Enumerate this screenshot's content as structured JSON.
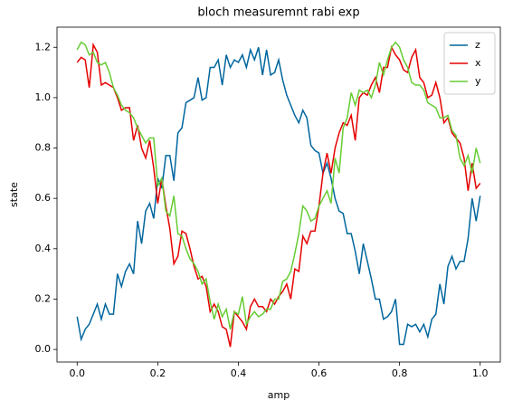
{
  "chart_data": {
    "type": "line",
    "title": "bloch measuremnt rabi exp",
    "xlabel": "amp",
    "ylabel": "state",
    "x": [
      0,
      0.01,
      0.02,
      0.03,
      0.04,
      0.05,
      0.06,
      0.07,
      0.08,
      0.09,
      0.1,
      0.11,
      0.12,
      0.13,
      0.14,
      0.15,
      0.16,
      0.17,
      0.18,
      0.19,
      0.2,
      0.21,
      0.22,
      0.23,
      0.24,
      0.25,
      0.26,
      0.27,
      0.28,
      0.29,
      0.3,
      0.31,
      0.32,
      0.33,
      0.34,
      0.35,
      0.36,
      0.37,
      0.38,
      0.39,
      0.4,
      0.41,
      0.42,
      0.43,
      0.44,
      0.45,
      0.46,
      0.47,
      0.48,
      0.49,
      0.5,
      0.51,
      0.52,
      0.53,
      0.54,
      0.55,
      0.56,
      0.57,
      0.58,
      0.59,
      0.6,
      0.61,
      0.62,
      0.63,
      0.64,
      0.65,
      0.66,
      0.67,
      0.68,
      0.69,
      0.7,
      0.71,
      0.72,
      0.73,
      0.74,
      0.75,
      0.76,
      0.77,
      0.78,
      0.79,
      0.8,
      0.81,
      0.82,
      0.83,
      0.84,
      0.85,
      0.86,
      0.87,
      0.88,
      0.89,
      0.9,
      0.91,
      0.92,
      0.93,
      0.94,
      0.95,
      0.96,
      0.97,
      0.98,
      0.99,
      1
    ],
    "series": [
      {
        "name": "z",
        "color": "#00669e",
        "values": [
          0.13,
          0.04,
          0.08,
          0.1,
          0.14,
          0.18,
          0.12,
          0.18,
          0.14,
          0.14,
          0.3,
          0.25,
          0.31,
          0.34,
          0.3,
          0.51,
          0.42,
          0.55,
          0.58,
          0.52,
          0.68,
          0.64,
          0.77,
          0.77,
          0.67,
          0.86,
          0.88,
          0.98,
          0.99,
          1.0,
          1.08,
          0.99,
          1.0,
          1.12,
          1.12,
          1.15,
          1.05,
          1.17,
          1.12,
          1.15,
          1.14,
          1.17,
          1.12,
          1.19,
          1.15,
          1.2,
          1.09,
          1.19,
          1.09,
          1.1,
          1.15,
          1.07,
          1.01,
          0.97,
          0.93,
          0.9,
          0.95,
          0.92,
          0.81,
          0.79,
          0.78,
          0.7,
          0.74,
          0.68,
          0.6,
          0.55,
          0.54,
          0.46,
          0.46,
          0.39,
          0.3,
          0.42,
          0.35,
          0.28,
          0.2,
          0.2,
          0.12,
          0.13,
          0.15,
          0.2,
          0.02,
          0.02,
          0.1,
          0.09,
          0.1,
          0.07,
          0.1,
          0.05,
          0.12,
          0.14,
          0.26,
          0.18,
          0.33,
          0.37,
          0.32,
          0.35,
          0.35,
          0.44,
          0.6,
          0.51,
          0.61
        ]
      },
      {
        "name": "x",
        "color": "#e60000",
        "values": [
          1.14,
          1.16,
          1.15,
          1.04,
          1.21,
          1.18,
          1.05,
          1.06,
          1.05,
          1.04,
          1.0,
          0.95,
          0.96,
          0.96,
          0.83,
          0.89,
          0.8,
          0.76,
          0.83,
          0.72,
          0.58,
          0.68,
          0.57,
          0.48,
          0.34,
          0.37,
          0.47,
          0.46,
          0.4,
          0.33,
          0.28,
          0.29,
          0.25,
          0.15,
          0.18,
          0.15,
          0.09,
          0.08,
          0.01,
          0.15,
          0.13,
          0.11,
          0.08,
          0.17,
          0.2,
          0.17,
          0.17,
          0.15,
          0.2,
          0.18,
          0.21,
          0.23,
          0.26,
          0.2,
          0.32,
          0.31,
          0.45,
          0.42,
          0.47,
          0.47,
          0.57,
          0.7,
          0.78,
          0.7,
          0.8,
          0.86,
          0.9,
          0.89,
          0.93,
          0.83,
          1.0,
          1.02,
          1.01,
          1.05,
          1.08,
          1.02,
          1.12,
          1.12,
          1.2,
          1.17,
          1.15,
          1.11,
          1.1,
          1.16,
          1.19,
          1.08,
          1.06,
          1.0,
          1.01,
          1.06,
          1.0,
          0.9,
          0.92,
          0.86,
          0.84,
          0.82,
          0.76,
          0.63,
          0.74,
          0.64,
          0.66
        ]
      },
      {
        "name": "y",
        "color": "#66cc33",
        "values": [
          1.19,
          1.22,
          1.21,
          1.17,
          1.18,
          1.14,
          1.13,
          1.14,
          1.1,
          1.04,
          1.01,
          0.97,
          0.95,
          0.94,
          0.92,
          0.88,
          0.85,
          0.82,
          0.84,
          0.84,
          0.65,
          0.68,
          0.55,
          0.53,
          0.61,
          0.46,
          0.45,
          0.4,
          0.36,
          0.34,
          0.31,
          0.26,
          0.28,
          0.19,
          0.12,
          0.18,
          0.13,
          0.16,
          0.08,
          0.15,
          0.14,
          0.21,
          0.1,
          0.13,
          0.15,
          0.13,
          0.14,
          0.16,
          0.16,
          0.2,
          0.2,
          0.27,
          0.28,
          0.31,
          0.38,
          0.46,
          0.57,
          0.55,
          0.51,
          0.52,
          0.57,
          0.6,
          0.63,
          0.58,
          0.76,
          0.7,
          0.88,
          0.92,
          1.02,
          0.97,
          1.03,
          1.02,
          1.03,
          1.0,
          1.05,
          1.14,
          1.09,
          1.15,
          1.2,
          1.22,
          1.2,
          1.15,
          1.12,
          1.06,
          1.05,
          1.05,
          1.03,
          0.98,
          0.97,
          0.96,
          0.92,
          0.92,
          0.93,
          0.87,
          0.85,
          0.76,
          0.73,
          0.77,
          0.7,
          0.8,
          0.74
        ]
      }
    ],
    "xlim": [
      -0.05,
      1.05
    ],
    "xticks": [
      {
        "value": 0,
        "label": "0.0"
      },
      0.2,
      0.4,
      0.6,
      0.8,
      {
        "value": 1,
        "label": "1.0"
      }
    ],
    "ylim": [
      -0.05,
      1.28
    ],
    "yticks": [
      {
        "value": 0,
        "label": "0.0"
      },
      0.2,
      0.4,
      0.6,
      0.8,
      {
        "value": 1,
        "label": "1.0"
      },
      1.2
    ],
    "legend": "upper right",
    "grid": false
  }
}
